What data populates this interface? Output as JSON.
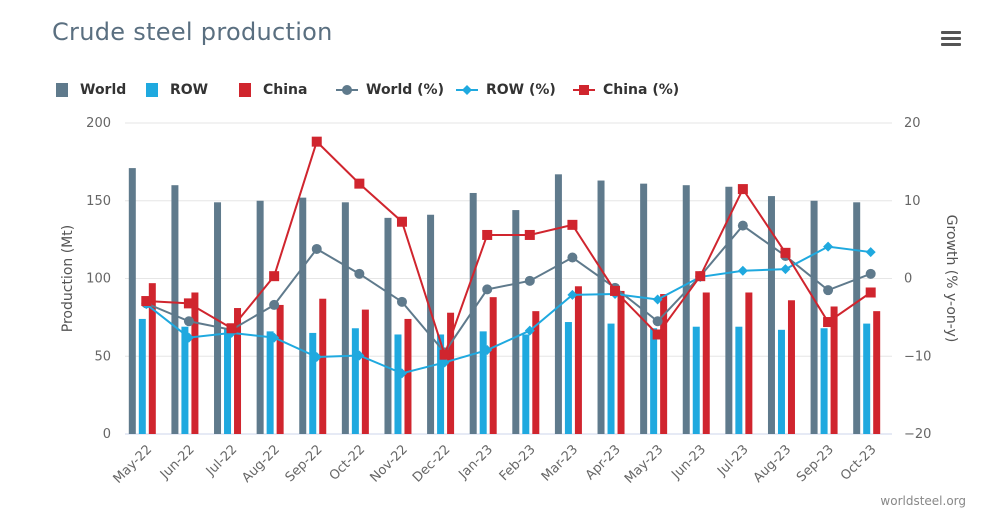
{
  "title": "Crude steel production",
  "credit": "worldsteel.org",
  "menu_icon": "hamburger-menu-icon",
  "chart_data": {
    "type": "bar",
    "categories": [
      "May-22",
      "Jun-22",
      "Jul-22",
      "Aug-22",
      "Sep-22",
      "Oct-22",
      "Nov-22",
      "Dec-22",
      "Jan-23",
      "Feb-23",
      "Mar-23",
      "Apr-23",
      "May-23",
      "Jun-23",
      "Jul-23",
      "Aug-23",
      "Sep-23",
      "Oct-23"
    ],
    "left_axis": {
      "title": "Production (Mt)",
      "min": 0,
      "max": 200,
      "ticks": [
        0,
        50,
        100,
        150,
        200
      ]
    },
    "right_axis": {
      "title": "Growth (% y-on-y)",
      "min": -20,
      "max": 20,
      "ticks": [
        -20,
        -10,
        0,
        10,
        20
      ]
    },
    "legend_position": "top-left",
    "bar_series": [
      {
        "name": "World",
        "color": "#5f7a8c",
        "values": [
          171,
          160,
          149,
          150,
          152,
          149,
          139,
          141,
          155,
          144,
          167,
          163,
          161,
          160,
          159,
          153,
          150,
          149
        ]
      },
      {
        "name": "ROW",
        "color": "#1fa9df",
        "values": [
          74,
          69,
          68,
          66,
          65,
          68,
          64,
          64,
          66,
          64,
          72,
          71,
          68,
          69,
          69,
          67,
          68,
          71
        ]
      },
      {
        "name": "China",
        "color": "#d0252e",
        "values": [
          97,
          91,
          81,
          83,
          87,
          80,
          74,
          78,
          88,
          79,
          95,
          92,
          90,
          91,
          91,
          86,
          82,
          79
        ]
      }
    ],
    "line_series": [
      {
        "name": "World (%)",
        "color": "#5f7a8c",
        "marker": "circle",
        "values": [
          -3.2,
          -5.5,
          -6.6,
          -3.4,
          3.8,
          0.6,
          -3.0,
          -9.5,
          -1.4,
          -0.3,
          2.7,
          -1.2,
          -5.5,
          0.3,
          6.8,
          2.9,
          -1.5,
          0.6
        ]
      },
      {
        "name": "ROW (%)",
        "color": "#1fa9df",
        "marker": "diamond",
        "values": [
          -3.3,
          -7.6,
          -7.0,
          -7.6,
          -10.1,
          -9.9,
          -12.2,
          -10.8,
          -9.2,
          -6.7,
          -2.1,
          -2.0,
          -2.7,
          0.2,
          1.0,
          1.2,
          4.1,
          3.4
        ]
      },
      {
        "name": "China (%)",
        "color": "#d0252e",
        "marker": "square",
        "values": [
          -2.9,
          -3.2,
          -6.4,
          0.3,
          17.6,
          12.2,
          7.3,
          -9.8,
          5.6,
          5.6,
          6.9,
          -1.6,
          -7.2,
          0.3,
          11.5,
          3.3,
          -5.6,
          -1.8
        ]
      }
    ]
  },
  "legend": [
    {
      "label": "World",
      "symbol": "bar",
      "color": "#5f7a8c"
    },
    {
      "label": "ROW",
      "symbol": "bar",
      "color": "#1fa9df"
    },
    {
      "label": "China",
      "symbol": "bar",
      "color": "#d0252e"
    },
    {
      "label": "World (%)",
      "symbol": "circle",
      "color": "#5f7a8c"
    },
    {
      "label": "ROW (%)",
      "symbol": "diamond",
      "color": "#1fa9df"
    },
    {
      "label": "China (%)",
      "symbol": "square",
      "color": "#d0252e"
    }
  ]
}
